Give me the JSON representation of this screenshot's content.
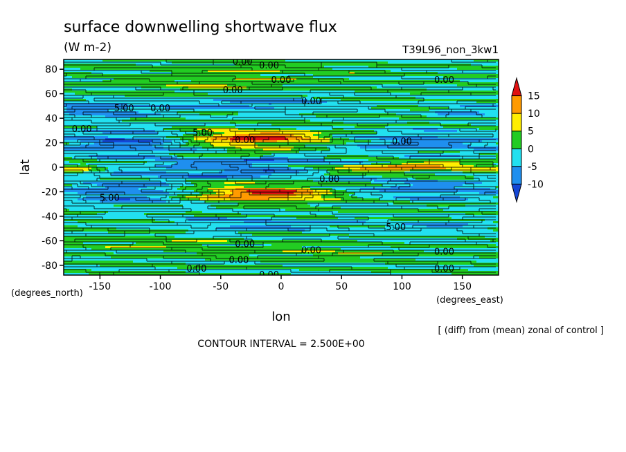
{
  "chart_data": {
    "type": "heatmap",
    "title": "surface downwelling shortwave flux",
    "units": "(W m-2)",
    "run_label": "T39L96_non_3kw1",
    "xlabel": "lon",
    "ylabel": "lat",
    "x_unit_label": "(degrees_east)",
    "y_unit_label": "(degrees_north)",
    "xlim": [
      -180,
      180
    ],
    "ylim": [
      -88,
      88
    ],
    "x_ticks": [
      -150,
      -100,
      -50,
      0,
      50,
      100,
      150
    ],
    "x_tick_labels": [
      "-150",
      "-100",
      "-50",
      "0",
      "50",
      "100",
      "150"
    ],
    "y_ticks": [
      80,
      60,
      40,
      20,
      0,
      -20,
      -40,
      -60,
      -80
    ],
    "y_tick_labels": [
      "80",
      "60",
      "40",
      "20",
      "0",
      "-20",
      "-40",
      "-60",
      "-80"
    ],
    "colorbar": {
      "levels": [
        15,
        10,
        5,
        0,
        -5,
        -10
      ],
      "level_labels": [
        "15",
        "10",
        "5",
        "0",
        "-5",
        "-10"
      ],
      "colors": {
        "above_15": "#e01010",
        "10_to_15": "#ff9a00",
        "5_to_10": "#ffee00",
        "0_to_5": "#22cc22",
        "-5_to_0": "#22e0f0",
        "-10_to_-5": "#1f8fef",
        "below_-10": "#1446d6"
      }
    },
    "contour_labels": [
      {
        "text": "0.00",
        "lon": -32,
        "lat": 86
      },
      {
        "text": "0.00",
        "lon": -10,
        "lat": 83
      },
      {
        "text": "0.00",
        "lon": 0,
        "lat": 71
      },
      {
        "text": "0.00",
        "lon": 135,
        "lat": 71
      },
      {
        "text": "0.00",
        "lon": -40,
        "lat": 63
      },
      {
        "text": "0.00",
        "lon": 25,
        "lat": 54
      },
      {
        "text": "0.00",
        "lon": -100,
        "lat": 48
      },
      {
        "text": "5.00",
        "lon": -130,
        "lat": 48
      },
      {
        "text": "0.00",
        "lon": -165,
        "lat": 31
      },
      {
        "text": "5.00",
        "lon": -65,
        "lat": 28
      },
      {
        "text": "0.00",
        "lon": 100,
        "lat": 21
      },
      {
        "text": "0.00",
        "lon": -30,
        "lat": 22
      },
      {
        "text": "0.00",
        "lon": 40,
        "lat": -10
      },
      {
        "text": "5.00",
        "lon": -142,
        "lat": -25
      },
      {
        "text": "5.00",
        "lon": 95,
        "lat": -49
      },
      {
        "text": "0.00",
        "lon": -30,
        "lat": -63
      },
      {
        "text": "0.00",
        "lon": 25,
        "lat": -68
      },
      {
        "text": "0.00",
        "lon": 135,
        "lat": -69
      },
      {
        "text": "0.00",
        "lon": -35,
        "lat": -76
      },
      {
        "text": "0.00",
        "lon": -70,
        "lat": -83
      },
      {
        "text": "0.00",
        "lon": 135,
        "lat": -83
      },
      {
        "text": "0.00",
        "lon": -10,
        "lat": -88
      }
    ],
    "grid": false,
    "legend_position": "right",
    "footer_note": "[ (diff) from (mean) zonal of control ]",
    "contour_interval_text": "CONTOUR INTERVAL = 2.500E+00"
  }
}
